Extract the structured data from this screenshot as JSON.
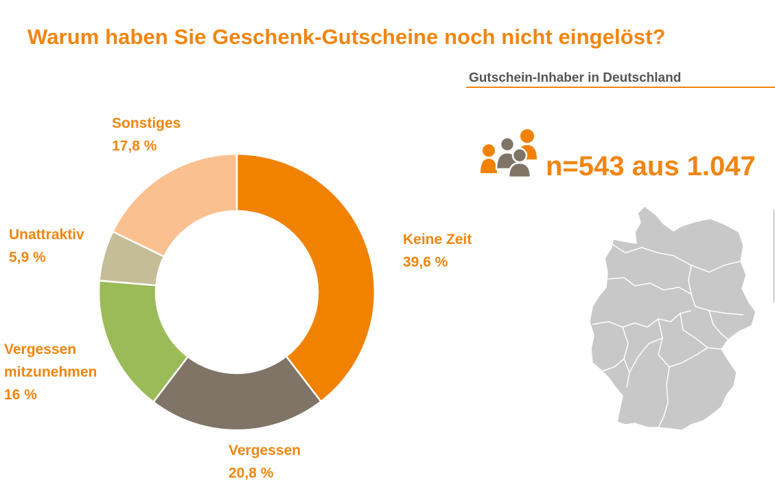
{
  "title": "Warum haben Sie Geschenk-Gutscheine noch nicht eingelöst?",
  "subtitle": "Gutschein-Inhaber in Deutschland",
  "sample": "n=543 aus 1.047",
  "icons": {
    "people": "people-group-icon",
    "map": "germany-map-icon"
  },
  "colors": {
    "accent": "#f08510",
    "keine_zeit": "#f08200",
    "vergessen": "#807467",
    "mitzunehmen": "#9bbb59",
    "unattraktiv": "#c4bd97",
    "sonstiges": "#fac090",
    "map": "#c8c8c8"
  },
  "chart_data": {
    "type": "pie",
    "donut": true,
    "title": "Warum haben Sie Geschenk-Gutscheine noch nicht eingelöst?",
    "slices": [
      {
        "label": "Keine Zeit",
        "value": 39.6,
        "value_label": "39,6 %",
        "color": "#f08200"
      },
      {
        "label": "Vergessen",
        "value": 20.8,
        "value_label": "20,8 %",
        "color": "#807467"
      },
      {
        "label": "Vergessen mitzunehmen",
        "label_line1": "Vergessen",
        "label_line2": "mitzunehmen",
        "value": 16,
        "value_label": "16 %",
        "color": "#9bbb59"
      },
      {
        "label": "Unattraktiv",
        "value": 5.9,
        "value_label": "5,9 %",
        "color": "#c4bd97"
      },
      {
        "label": "Sonstiges",
        "value": 17.8,
        "value_label": "17,8 %",
        "color": "#fac090"
      }
    ]
  }
}
